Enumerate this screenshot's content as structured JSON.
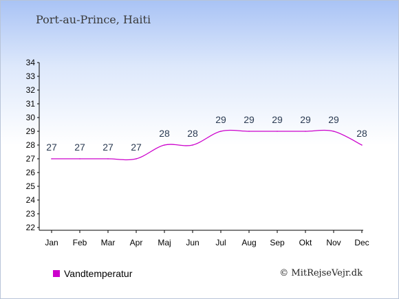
{
  "header": {
    "location": "Port-au-Prince, Haiti"
  },
  "legend": {
    "label": "Vandtemperatur",
    "color": "#cc00cc"
  },
  "footer": {
    "credit": "© MitRejseVejr.dk"
  },
  "chart_data": {
    "type": "line",
    "categories": [
      "Jan",
      "Feb",
      "Mar",
      "Apr",
      "Maj",
      "Jun",
      "Jul",
      "Aug",
      "Sep",
      "Okt",
      "Nov",
      "Dec"
    ],
    "series": [
      {
        "name": "Vandtemperatur",
        "values": [
          27,
          27,
          27,
          27,
          28,
          28,
          29,
          29,
          29,
          29,
          29,
          28
        ],
        "color": "#cc00cc"
      }
    ],
    "yticks": [
      22,
      23,
      24,
      25,
      26,
      27,
      28,
      29,
      30,
      31,
      32,
      33,
      34
    ],
    "ylim": [
      22,
      34
    ],
    "grid": false,
    "legend_position": "bottom-left"
  }
}
